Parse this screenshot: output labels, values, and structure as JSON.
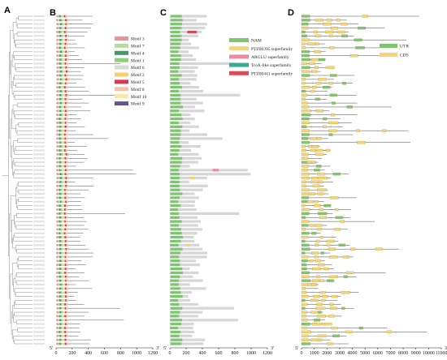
{
  "panels": [
    {
      "letter": "A"
    },
    {
      "letter": "B"
    },
    {
      "letter": "C"
    },
    {
      "letter": "D"
    }
  ],
  "motif_legend": [
    {
      "label": "Motif 3",
      "color": "#f08f9a"
    },
    {
      "label": "Motif 7",
      "color": "#b9dc9e"
    },
    {
      "label": "Motif 4",
      "color": "#3d9a6a"
    },
    {
      "label": "Motif 1",
      "color": "#8fcf7a"
    },
    {
      "label": "Motif 6",
      "color": "#dadada"
    },
    {
      "label": "Motif 2",
      "color": "#f7d06a"
    },
    {
      "label": "Motif 5",
      "color": "#d43a55"
    },
    {
      "label": "Motif 8",
      "color": "#f4c2a6"
    },
    {
      "label": "Motif 10",
      "color": "#f9e6a8"
    },
    {
      "label": "Motif 9",
      "color": "#6a4f93"
    }
  ],
  "domain_legend": [
    {
      "label": "NAM",
      "color": "#7cc66d"
    },
    {
      "label": "PTZ00395 superfamily",
      "color": "#f7d46f"
    },
    {
      "label": "ARGLU superfamily",
      "color": "#ef8aa0"
    },
    {
      "label": "TroA-like superfamily",
      "color": "#3aa893"
    },
    {
      "label": "PTZ00441 superfamily",
      "color": "#d94a5c"
    }
  ],
  "structure_legend": [
    {
      "label": "UTR",
      "color": "#7cc66d"
    },
    {
      "label": "CDS",
      "color": "#f7d46f"
    }
  ],
  "axis_b": {
    "start_label": "5'",
    "end_label": "3'",
    "ticks": [
      "0",
      "200",
      "400",
      "600",
      "800",
      "1000",
      "1200"
    ],
    "max": 1200
  },
  "axis_c": {
    "start_label": "5'",
    "end_label": "3'",
    "ticks": [
      "0",
      "200",
      "400",
      "600",
      "800",
      "1000",
      "1200"
    ],
    "max": 1200
  },
  "axis_d": {
    "start_label": "5'",
    "end_label": "3'",
    "ticks": [
      "0",
      "1000",
      "2000",
      "3000",
      "4000",
      "5000",
      "6000",
      "7000",
      "8000",
      "9000",
      "10000",
      "11000"
    ],
    "max": 11000
  },
  "colors": {
    "backbone": "#555555",
    "protein_bar": "#d6d6d6",
    "intron": "#333333",
    "tree": "#8c8c8c"
  }
}
